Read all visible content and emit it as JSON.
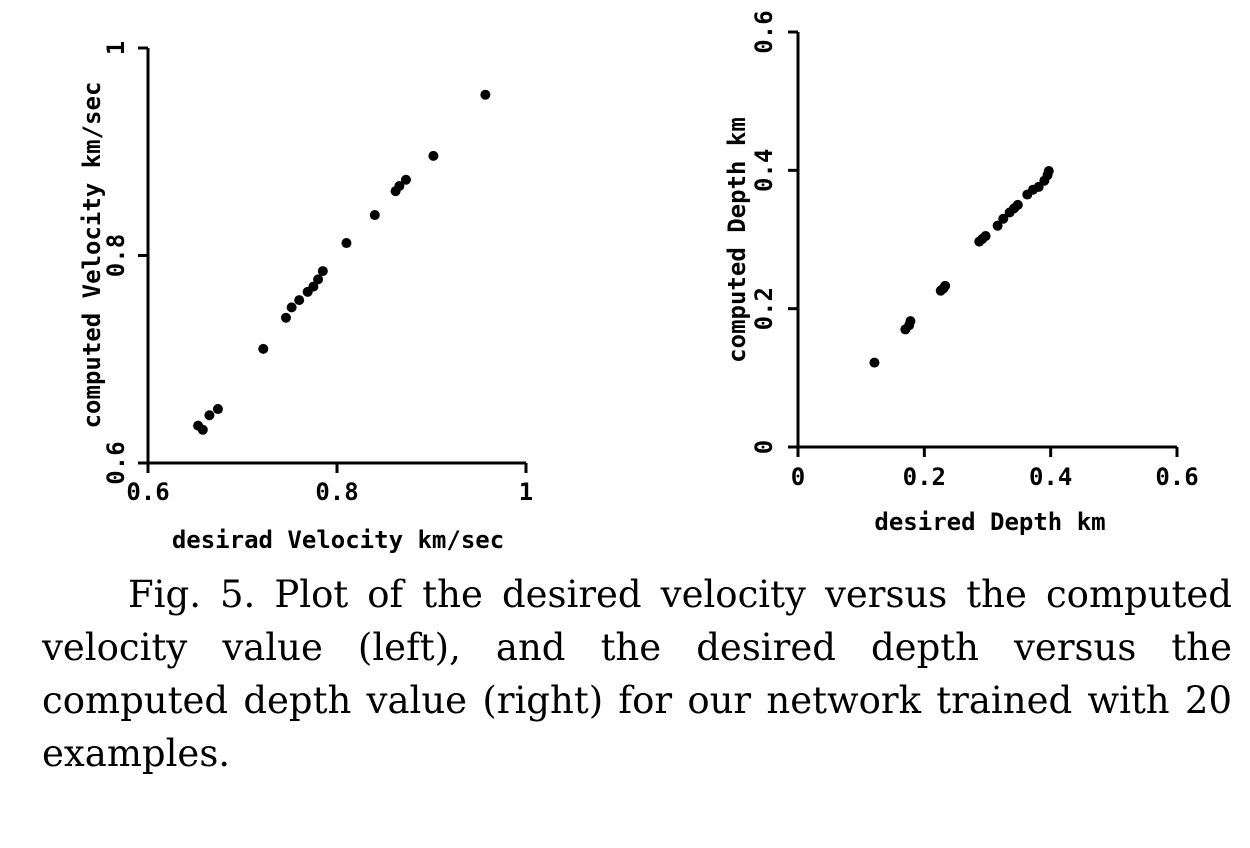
{
  "chart_data": [
    {
      "type": "scatter",
      "title": "",
      "xlabel": "desirad Velocity km/sec",
      "ylabel": "computed Velocity km/sec",
      "xlim": [
        0.6,
        1.0
      ],
      "ylim": [
        0.6,
        1.0
      ],
      "xticks": [
        "0.6",
        "0.8",
        "1"
      ],
      "yticks": [
        "0.6",
        "0.8",
        "1"
      ],
      "grid": false,
      "series": [
        {
          "points": [
            [
              0.653,
              0.636
            ],
            [
              0.658,
              0.632
            ],
            [
              0.665,
              0.646
            ],
            [
              0.674,
              0.652
            ],
            [
              0.722,
              0.71
            ],
            [
              0.746,
              0.74
            ],
            [
              0.752,
              0.75
            ],
            [
              0.76,
              0.757
            ],
            [
              0.769,
              0.765
            ],
            [
              0.775,
              0.77
            ],
            [
              0.78,
              0.777
            ],
            [
              0.785,
              0.785
            ],
            [
              0.81,
              0.812
            ],
            [
              0.84,
              0.839
            ],
            [
              0.862,
              0.862
            ],
            [
              0.866,
              0.867
            ],
            [
              0.873,
              0.873
            ],
            [
              0.902,
              0.896
            ],
            [
              0.957,
              0.955
            ]
          ]
        }
      ]
    },
    {
      "type": "scatter",
      "title": "",
      "xlabel": "desired Depth km",
      "ylabel": "computed Depth km",
      "xlim": [
        0,
        0.6
      ],
      "ylim": [
        0,
        0.6
      ],
      "xticks": [
        "0",
        "0.2",
        "0.4",
        "0.6"
      ],
      "yticks": [
        "0",
        "0.2",
        "0.4",
        "0.6"
      ],
      "grid": false,
      "series": [
        {
          "points": [
            [
              0.121,
              0.122
            ],
            [
              0.17,
              0.17
            ],
            [
              0.176,
              0.176
            ],
            [
              0.178,
              0.182
            ],
            [
              0.226,
              0.226
            ],
            [
              0.23,
              0.229
            ],
            [
              0.233,
              0.233
            ],
            [
              0.287,
              0.297
            ],
            [
              0.292,
              0.301
            ],
            [
              0.297,
              0.305
            ],
            [
              0.316,
              0.32
            ],
            [
              0.325,
              0.33
            ],
            [
              0.335,
              0.339
            ],
            [
              0.342,
              0.345
            ],
            [
              0.348,
              0.35
            ],
            [
              0.363,
              0.365
            ],
            [
              0.372,
              0.372
            ],
            [
              0.381,
              0.376
            ],
            [
              0.39,
              0.385
            ],
            [
              0.395,
              0.393
            ],
            [
              0.397,
              0.399
            ]
          ]
        }
      ]
    }
  ],
  "caption": "Fig. 5. Plot of the desired velocity versus the computed velocity value (left), and the desired depth versus the computed depth value (right) for our network trained with 20 examples."
}
